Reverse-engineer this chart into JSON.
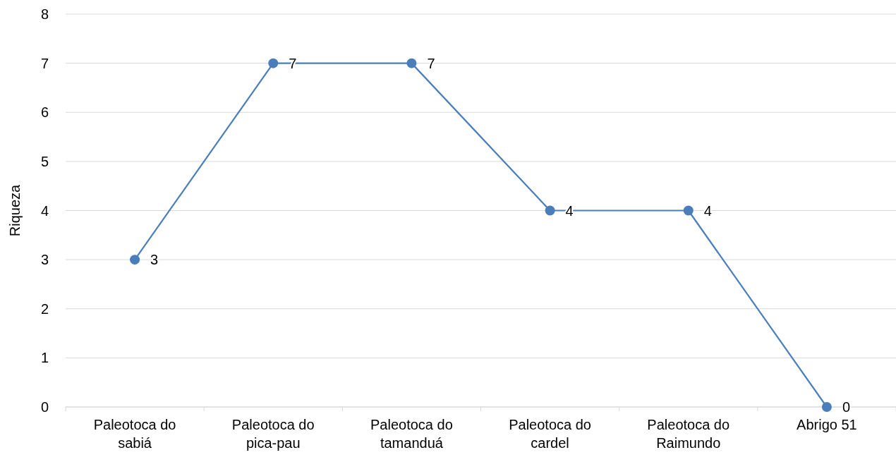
{
  "chart_data": {
    "type": "line",
    "ylabel": "Riqueza",
    "categories": [
      "Paleotoca do sabiá",
      "Paleotoca do pica-pau",
      "Paleotoca do tamanduá",
      "Paleotoca do cardel",
      "Paleotoca do Raimundo",
      "Abrigo 51"
    ],
    "series": [
      {
        "color": "#4a7ebb",
        "values": [
          3,
          7,
          7,
          4,
          4,
          0
        ]
      }
    ],
    "ylim": [
      0,
      8
    ],
    "yticks": [
      0,
      1,
      2,
      3,
      4,
      5,
      6,
      7,
      8
    ],
    "grid": "y",
    "marker": "circle",
    "line_style": "solid",
    "data_labels": true
  }
}
